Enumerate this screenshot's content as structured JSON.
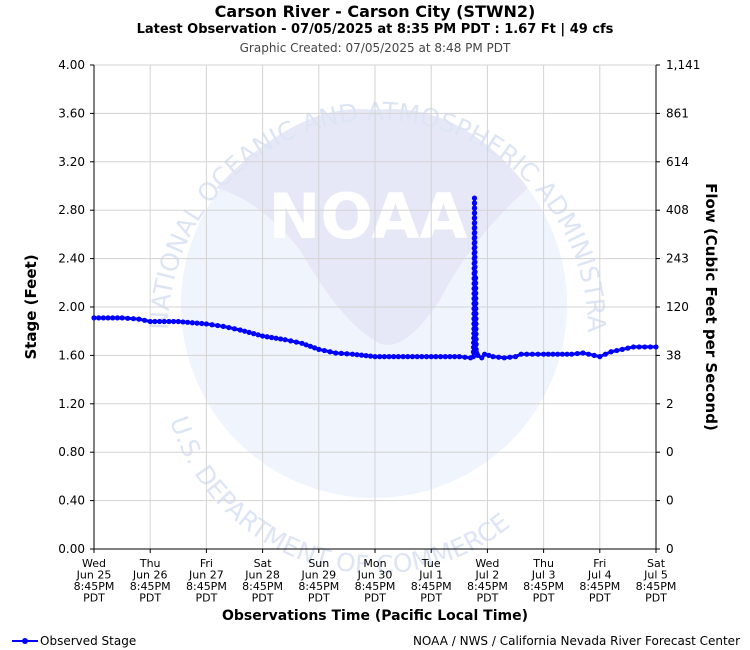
{
  "header": {
    "title": "Carson River - Carson City (STWN2)",
    "subtitle": "Latest Observation - 07/05/2025 at 8:35 PM PDT : 1.67 Ft | 49 cfs",
    "created": "Graphic Created: 07/05/2025 at 8:48 PM PDT"
  },
  "footer": {
    "legend_label": "Observed Stage",
    "credit": "NOAA / NWS / California Nevada River Forecast Center"
  },
  "watermark": {
    "logo_text": "NOAA",
    "ring_top": "NATIONAL OCEANIC AND ATMOSPHERIC ADMINISTRATION",
    "ring_bottom": "U.S. DEPARTMENT OF COMMERCE"
  },
  "colors": {
    "series": "#0000ff",
    "grid": "#d3d3d3",
    "watermark_fill": "#e8f0fc",
    "watermark_text": "#dde5f5"
  },
  "chart_data": {
    "type": "line",
    "ylabel": "Stage (Feet)",
    "y2label": "Flow (Cubic Feet per Second)",
    "xlabel": "Observations Time (Pacific Local Time)",
    "ylim": [
      0,
      4
    ],
    "y_ticks": [
      "0.00",
      "0.40",
      "0.80",
      "1.20",
      "1.60",
      "2.00",
      "2.40",
      "2.80",
      "3.20",
      "3.60",
      "4.00"
    ],
    "y2_ticks": [
      "0",
      "0",
      "0",
      "2",
      "38",
      "120",
      "243",
      "408",
      "614",
      "861",
      "1,141"
    ],
    "x_ticks": [
      {
        "day": "Wed",
        "date": "Jun 25",
        "time": "8:45PM",
        "tz": "PDT"
      },
      {
        "day": "Thu",
        "date": "Jun 26",
        "time": "8:45PM",
        "tz": "PDT"
      },
      {
        "day": "Fri",
        "date": "Jun 27",
        "time": "8:45PM",
        "tz": "PDT"
      },
      {
        "day": "Sat",
        "date": "Jun 28",
        "time": "8:45PM",
        "tz": "PDT"
      },
      {
        "day": "Sun",
        "date": "Jun 29",
        "time": "8:45PM",
        "tz": "PDT"
      },
      {
        "day": "Mon",
        "date": "Jun 30",
        "time": "8:45PM",
        "tz": "PDT"
      },
      {
        "day": "Tue",
        "date": "Jul 1",
        "time": "8:45PM",
        "tz": "PDT"
      },
      {
        "day": "Wed",
        "date": "Jul 2",
        "time": "8:45PM",
        "tz": "PDT"
      },
      {
        "day": "Thu",
        "date": "Jul 3",
        "time": "8:45PM",
        "tz": "PDT"
      },
      {
        "day": "Fri",
        "date": "Jul 4",
        "time": "8:45PM",
        "tz": "PDT"
      },
      {
        "day": "Sat",
        "date": "Jul 5",
        "time": "8:45PM",
        "tz": "PDT"
      }
    ],
    "grid": true,
    "legend": "bottom-left",
    "series": [
      {
        "name": "Observed Stage",
        "x_unit": "days after Wed Jun 25 8:45PM PDT",
        "x": [
          0,
          0.5,
          0.8,
          1.0,
          1.5,
          2.0,
          2.3,
          2.6,
          3.0,
          3.4,
          3.7,
          4.0,
          4.3,
          4.6,
          5.0,
          5.5,
          6.0,
          6.5,
          6.7,
          6.75,
          6.76,
          6.77,
          6.78,
          6.79,
          6.8,
          6.81,
          6.83,
          6.9,
          6.95,
          7.1,
          7.3,
          7.5,
          7.6,
          7.8,
          8.0,
          8.5,
          8.7,
          8.9,
          9.0,
          9.2,
          9.4,
          9.6,
          9.8,
          10.0
        ],
        "values": [
          1.91,
          1.91,
          1.9,
          1.88,
          1.88,
          1.86,
          1.84,
          1.81,
          1.76,
          1.73,
          1.7,
          1.65,
          1.62,
          1.61,
          1.59,
          1.59,
          1.59,
          1.59,
          1.58,
          1.59,
          1.82,
          2.9,
          2.29,
          2.24,
          1.65,
          1.62,
          1.6,
          1.58,
          1.61,
          1.59,
          1.58,
          1.59,
          1.61,
          1.61,
          1.61,
          1.61,
          1.62,
          1.6,
          1.59,
          1.63,
          1.65,
          1.67,
          1.67,
          1.67
        ]
      }
    ]
  }
}
